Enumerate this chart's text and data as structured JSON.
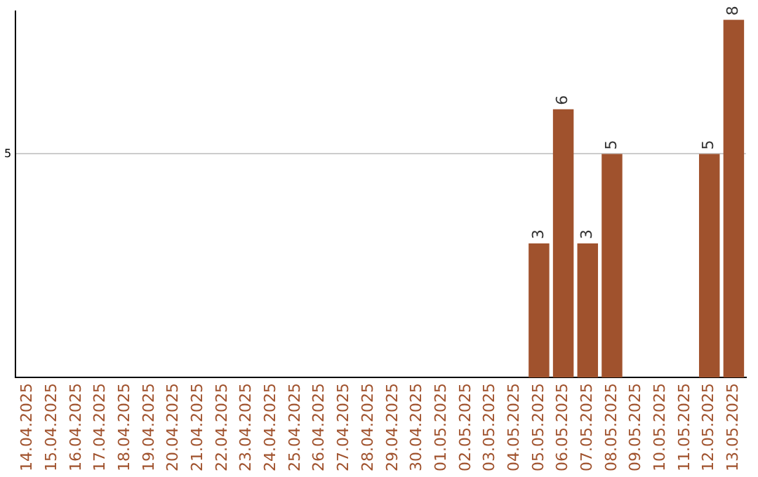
{
  "chart_data": {
    "type": "bar",
    "categories": [
      "14.04.2025",
      "15.04.2025",
      "16.04.2025",
      "17.04.2025",
      "18.04.2025",
      "19.04.2025",
      "20.04.2025",
      "21.04.2025",
      "22.04.2025",
      "23.04.2025",
      "24.04.2025",
      "25.04.2025",
      "26.04.2025",
      "27.04.2025",
      "28.04.2025",
      "29.04.2025",
      "30.04.2025",
      "01.05.2025",
      "02.05.2025",
      "03.05.2025",
      "04.05.2025",
      "05.05.2025",
      "06.05.2025",
      "07.05.2025",
      "08.05.2025",
      "09.05.2025",
      "10.05.2025",
      "11.05.2025",
      "12.05.2025",
      "13.05.2025"
    ],
    "values": [
      null,
      null,
      null,
      null,
      null,
      null,
      null,
      null,
      null,
      null,
      null,
      null,
      null,
      null,
      null,
      null,
      null,
      null,
      null,
      null,
      null,
      3,
      6,
      3,
      5,
      null,
      null,
      null,
      5,
      8
    ],
    "data_labels": true,
    "color": "#a0522d",
    "ylim": [
      0,
      8.2
    ],
    "yticks": [
      5
    ],
    "grid": "y",
    "legend": false
  }
}
